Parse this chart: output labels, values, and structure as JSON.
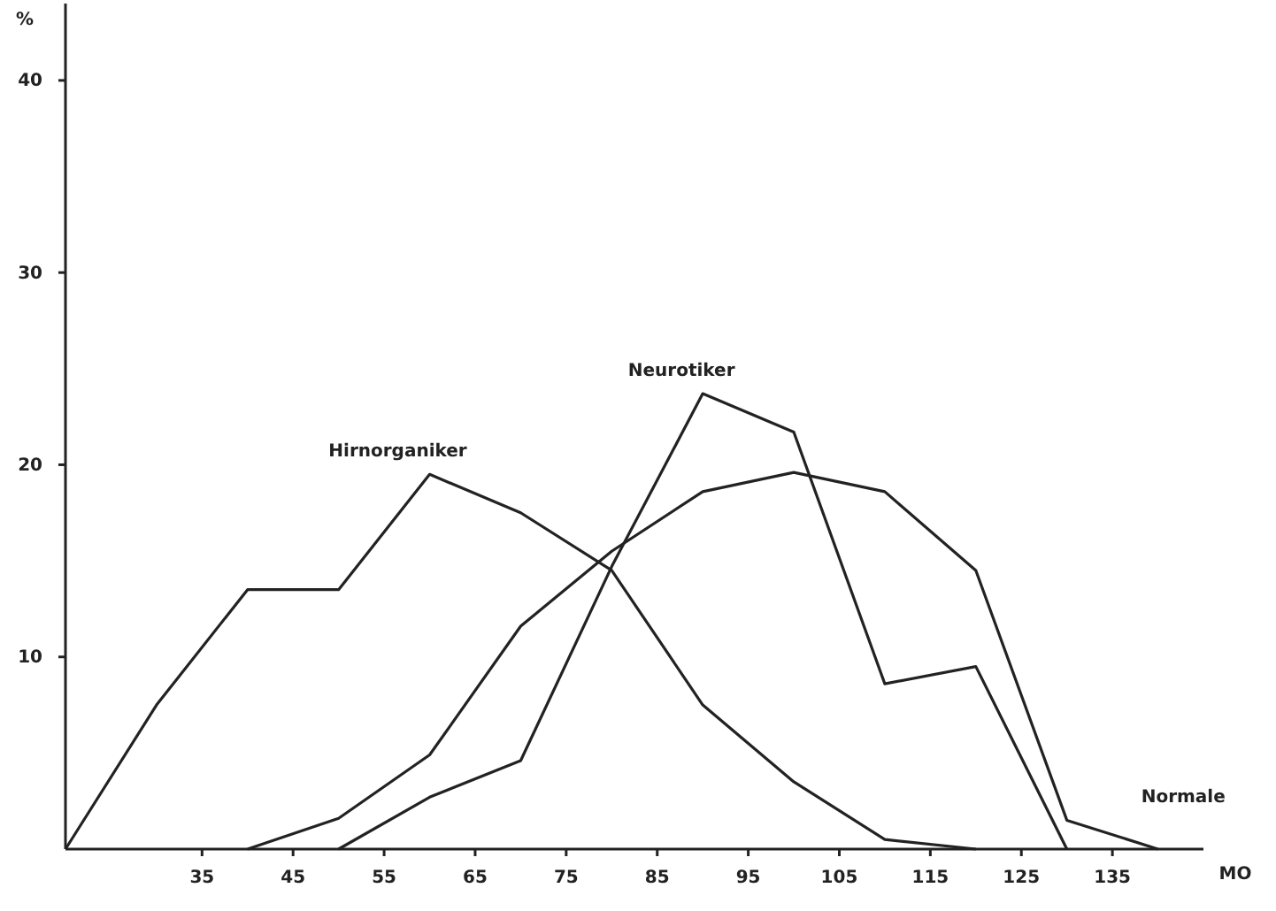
{
  "chart_data": {
    "type": "line",
    "xlabel": "MO",
    "ylabel": "%",
    "x": [
      20,
      30,
      40,
      50,
      60,
      70,
      80,
      90,
      100,
      110,
      120,
      130,
      140
    ],
    "series": [
      {
        "name": "Hirnorganiker",
        "color": "#222222",
        "values": [
          0,
          7.5,
          13.5,
          13.5,
          19.5,
          17.5,
          14.5,
          7.5,
          3.5,
          0.5,
          0,
          null,
          null
        ]
      },
      {
        "name": "Neurotiker",
        "color": "#222222",
        "values": [
          null,
          null,
          null,
          0,
          2.7,
          4.6,
          14.7,
          23.7,
          21.7,
          8.6,
          9.5,
          0,
          null
        ]
      },
      {
        "name": "Normale",
        "color": "#222222",
        "values": [
          null,
          null,
          0,
          1.6,
          4.9,
          11.6,
          15.5,
          18.6,
          19.6,
          18.6,
          14.5,
          1.5,
          0
        ]
      }
    ],
    "xlim": [
      20,
      145
    ],
    "ylim": [
      0,
      44
    ],
    "xticks": [
      35,
      45,
      55,
      65,
      75,
      85,
      95,
      105,
      115,
      125,
      135
    ],
    "yticks": [
      10,
      20,
      30,
      40
    ],
    "grid": false,
    "legend": false,
    "marker": "none",
    "line_style": "solid"
  }
}
